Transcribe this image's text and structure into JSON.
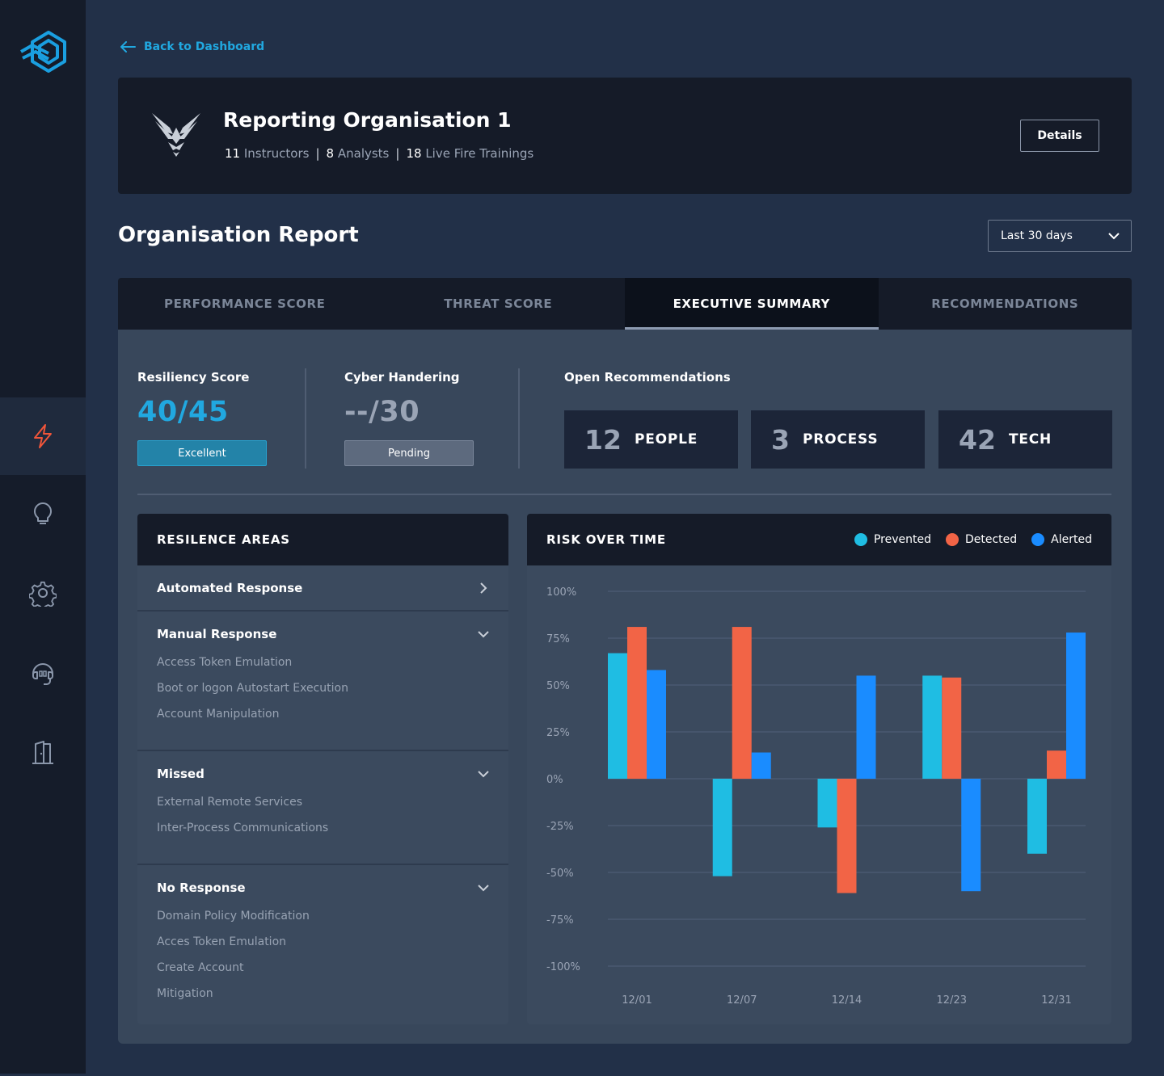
{
  "nav": {
    "back_label": "Back to Dashboard",
    "items": [
      {
        "icon": "lightning-icon",
        "active": true
      },
      {
        "icon": "lightbulb-icon",
        "active": false
      },
      {
        "icon": "gear-icon",
        "active": false
      },
      {
        "icon": "headset-icon",
        "active": false
      },
      {
        "icon": "door-exit-icon",
        "active": false
      }
    ]
  },
  "org": {
    "title": "Reporting Organisation 1",
    "instructors_count": "11",
    "instructors_label": "Instructors",
    "analysts_count": "8",
    "analysts_label": "Analysts",
    "trainings_count": "18",
    "trainings_label": "Live Fire Trainings",
    "separator": "|",
    "details_label": "Details"
  },
  "report": {
    "title": "Organisation Report",
    "range_selected": "Last 30 days"
  },
  "tabs": [
    {
      "label": "PERFORMANCE SCORE",
      "active": false
    },
    {
      "label": "THREAT SCORE",
      "active": false
    },
    {
      "label": "EXECUTIVE SUMMARY",
      "active": true
    },
    {
      "label": "RECOMMENDATIONS",
      "active": false
    }
  ],
  "scores": {
    "resiliency": {
      "label": "Resiliency Score",
      "value": "40/45",
      "badge": "Excellent",
      "color": "#21a8e0",
      "badge_color": "#2383a8"
    },
    "cyber": {
      "label": "Cyber Handering",
      "value": "--/30",
      "badge": "Pending",
      "color": "#9aa4b5",
      "badge_color": "#5d6a7e"
    }
  },
  "recommendations": {
    "label": "Open Recommendations",
    "items": [
      {
        "count": "12",
        "name": "PEOPLE"
      },
      {
        "count": "3",
        "name": "PROCESS"
      },
      {
        "count": "42",
        "name": "TECH"
      }
    ]
  },
  "resilience": {
    "title": "RESILENCE AREAS",
    "sections": [
      {
        "name": "Automated Response",
        "expanded": false,
        "items": []
      },
      {
        "name": "Manual Response",
        "expanded": true,
        "items": [
          "Access Token Emulation",
          "Boot or logon Autostart Execution",
          "Account Manipulation"
        ]
      },
      {
        "name": "Missed",
        "expanded": true,
        "items": [
          "External Remote Services",
          "Inter-Process Communications"
        ]
      },
      {
        "name": "No Response",
        "expanded": true,
        "items": [
          "Domain Policy Modification",
          "Acces Token Emulation",
          "Create Account",
          "Mitigation"
        ]
      }
    ]
  },
  "risk": {
    "title": "RISK OVER TIME"
  },
  "chart_data": {
    "type": "bar",
    "title": "RISK OVER TIME",
    "categories": [
      "12/01",
      "12/07",
      "12/14",
      "12/23",
      "12/31"
    ],
    "series": [
      {
        "name": "Prevented",
        "color": "#1fbde3",
        "values": [
          67,
          -52,
          -26,
          55,
          -40
        ]
      },
      {
        "name": "Detected",
        "color": "#f26446",
        "values": [
          81,
          81,
          -61,
          54,
          15
        ]
      },
      {
        "name": "Alerted",
        "color": "#1a8cff",
        "values": [
          58,
          14,
          55,
          -60,
          78
        ]
      }
    ],
    "y_ticks": [
      "100%",
      "75%",
      "50%",
      "25%",
      "0%",
      "-25%",
      "-50%",
      "-75%",
      "-100%"
    ],
    "ylim": [
      -100,
      100
    ],
    "grid": true,
    "legend": "top-right"
  }
}
